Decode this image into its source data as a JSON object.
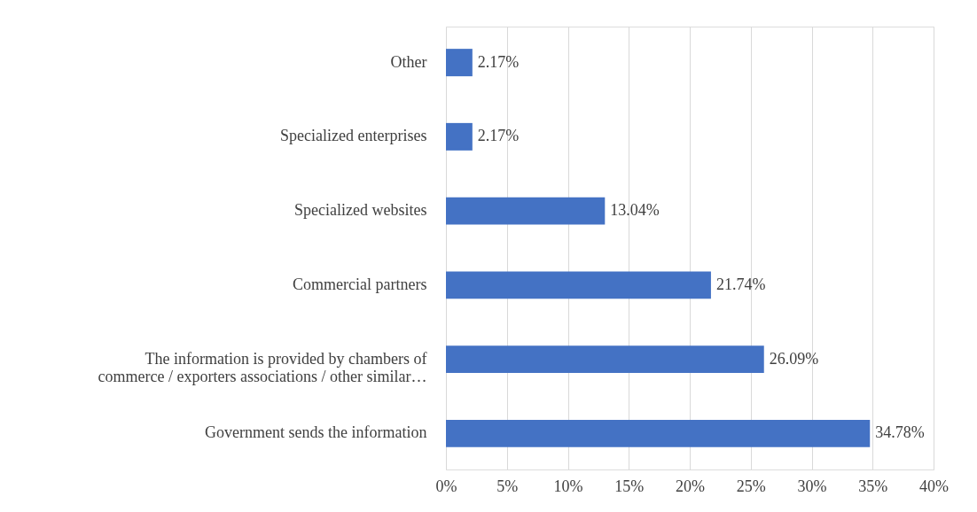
{
  "chart_data": {
    "type": "bar",
    "orientation": "horizontal",
    "categories": [
      "Other",
      "Specialized enterprises",
      "Specialized websites",
      "Commercial partners",
      "The information is provided by chambers of commerce / exporters associations / other similar…",
      "Government sends the information"
    ],
    "values": [
      2.17,
      2.17,
      13.04,
      21.74,
      26.09,
      34.78
    ],
    "value_labels": [
      "2.17%",
      "2.17%",
      "13.04%",
      "21.74%",
      "26.09%",
      "34.78%"
    ],
    "color": "#4472c4",
    "xlim": [
      0,
      40
    ],
    "xticks": [
      {
        "value": 0,
        "label": "0%"
      },
      {
        "value": 5,
        "label": "5%"
      },
      {
        "value": 10,
        "label": "10%"
      },
      {
        "value": 15,
        "label": "15%"
      },
      {
        "value": 20,
        "label": "20%"
      },
      {
        "value": 25,
        "label": "25%"
      },
      {
        "value": 30,
        "label": "30%"
      },
      {
        "value": 35,
        "label": "35%"
      },
      {
        "value": 40,
        "label": "40%"
      }
    ],
    "grid": "x"
  }
}
